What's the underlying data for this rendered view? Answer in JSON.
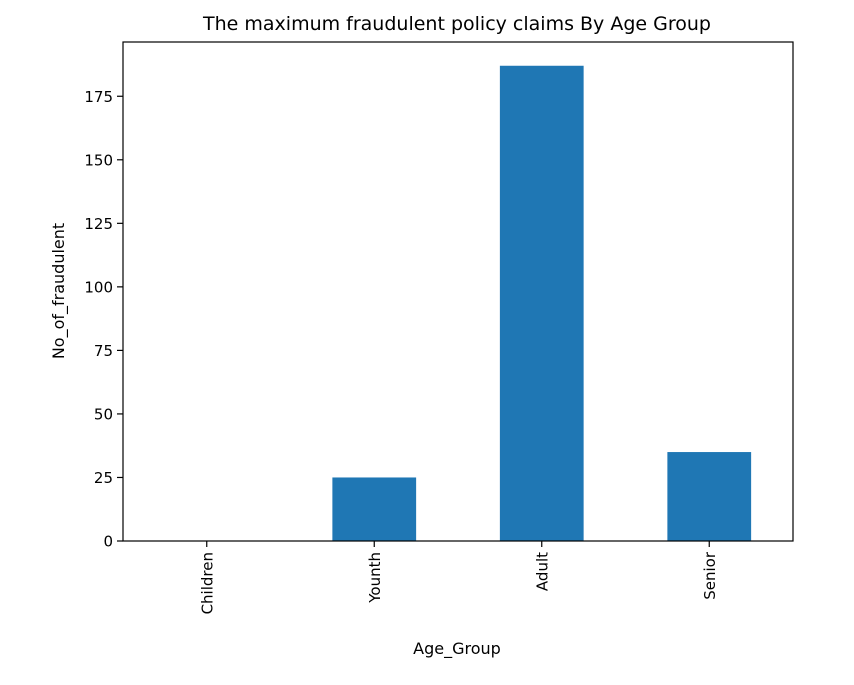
{
  "chart_data": {
    "type": "bar",
    "title": "The maximum fraudulent policy claims By Age Group",
    "xlabel": "Age_Group",
    "ylabel": "No_of_fraudulent",
    "categories": [
      "Children",
      "Younth",
      "Adult",
      "Senior"
    ],
    "values": [
      0,
      25,
      187,
      35
    ],
    "ylim": [
      0,
      196.35
    ],
    "yticks": [
      0,
      25,
      50,
      75,
      100,
      125,
      150,
      175
    ],
    "grid": false,
    "legend": "none",
    "bar_color": "#1f77b4",
    "x_tick_rotation": "vertical"
  }
}
